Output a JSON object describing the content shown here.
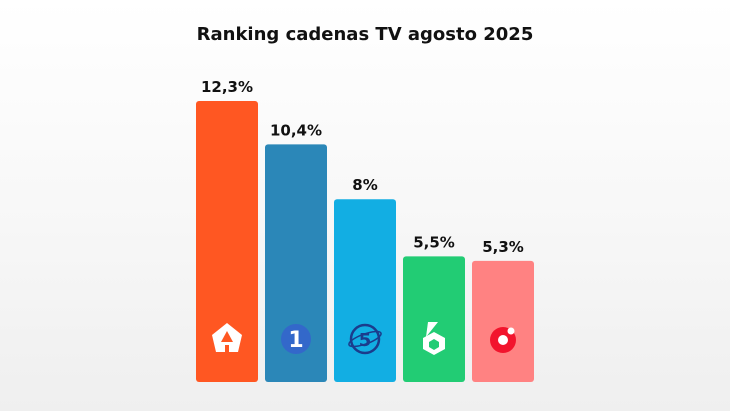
{
  "chart_data": {
    "type": "bar",
    "title": "Ranking cadenas TV agosto 2025",
    "categories": [
      "Antena 3",
      "La 1",
      "Telecinco",
      "laSexta",
      "Cuatro"
    ],
    "values": [
      12.3,
      10.4,
      8.0,
      5.5,
      5.3
    ],
    "value_labels": [
      "12,3%",
      "10,4%",
      "8%",
      "5,5%",
      "5,3%"
    ],
    "bar_colors": [
      "#ff5722",
      "#2b87b8",
      "#12aee3",
      "#22cc74",
      "#ff8282"
    ],
    "icons": [
      "antena3-logo-icon",
      "la1-logo-icon",
      "telecinco-logo-icon",
      "lasexta-logo-icon",
      "cuatro-logo-icon"
    ],
    "xlabel": "",
    "ylabel": "",
    "ylim": [
      0,
      12.3
    ],
    "grid": false,
    "legend": "none"
  }
}
